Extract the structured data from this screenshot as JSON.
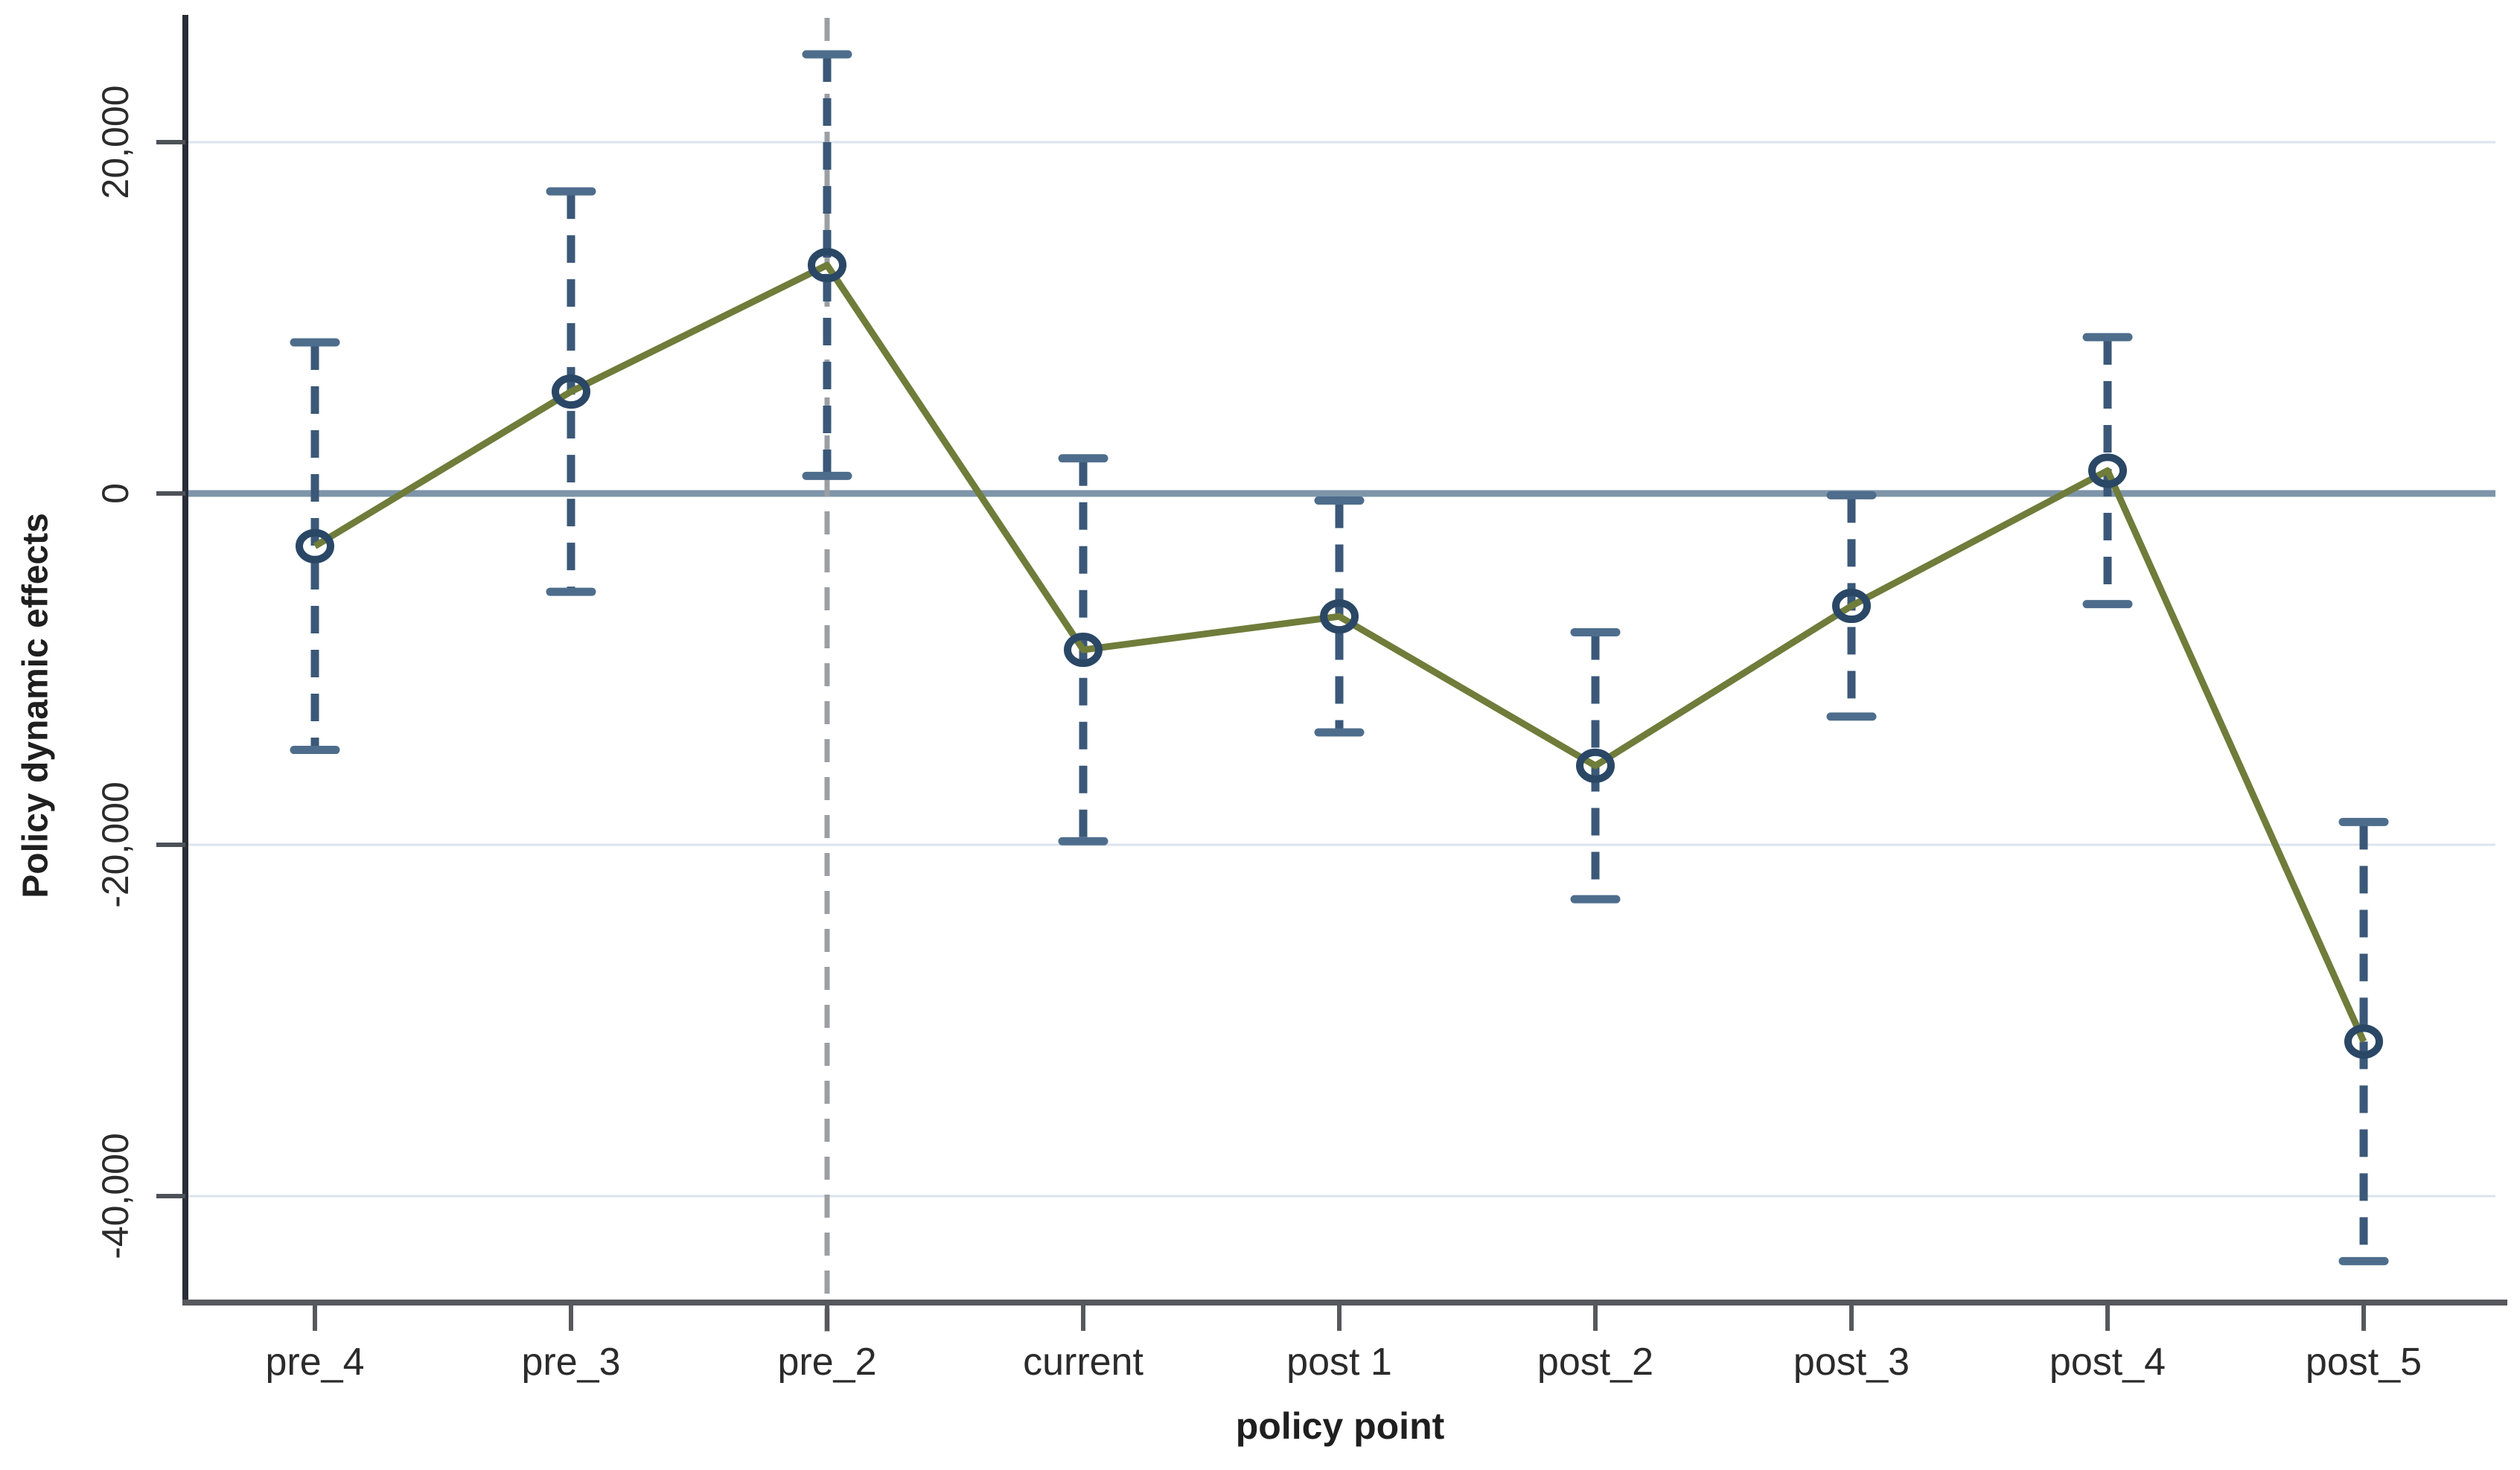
{
  "chart_data": {
    "type": "line",
    "subtype": "point-estimates-with-dashed-confidence-intervals",
    "title": "",
    "xlabel": "policy point",
    "ylabel": "Policy dynamic effects",
    "categories": [
      "pre_4",
      "pre_3",
      "pre_2",
      "current",
      "post  1",
      "post_2",
      "post_3",
      "post_4",
      "post_5"
    ],
    "series": [
      {
        "name": "point estimate",
        "values": [
          -3000,
          5800,
          13000,
          -8900,
          -7000,
          -15500,
          -6400,
          1300,
          -31200
        ]
      },
      {
        "name": "ci_upper",
        "values": [
          8600,
          17200,
          25000,
          2000,
          -400,
          -7900,
          -100,
          8900,
          -18700
        ]
      },
      {
        "name": "ci_lower",
        "values": [
          -14600,
          -5600,
          1000,
          -19800,
          -13600,
          -23100,
          -12700,
          -6300,
          -43700
        ]
      }
    ],
    "y_ticks": [
      20000,
      0,
      -20000,
      -40000
    ],
    "y_tick_labels": [
      "20,000",
      "0",
      "-20,000",
      "-40,000"
    ],
    "ylim": [
      -46000,
      27200
    ],
    "zero_line": 0,
    "reference_line_x_category": "pre_2",
    "grid": "horizontal-light",
    "legend": "none"
  },
  "colors": {
    "background": "#ffffff",
    "estimate_line": "#6f7c3a",
    "marker_stroke": "#2a4766",
    "ci_dash": "#3b5878",
    "ci_cap": "#4e6d8c",
    "zero_line": "#7e95a9",
    "gridline": "#dbe4ee",
    "reference_dash": "#9b9fa4",
    "y_axis": "#282c37",
    "x_axis": "#56585d",
    "tick_mark": "#4d5158",
    "tick_label": "#2b2b2b",
    "axis_title": "#1f1f1f"
  }
}
